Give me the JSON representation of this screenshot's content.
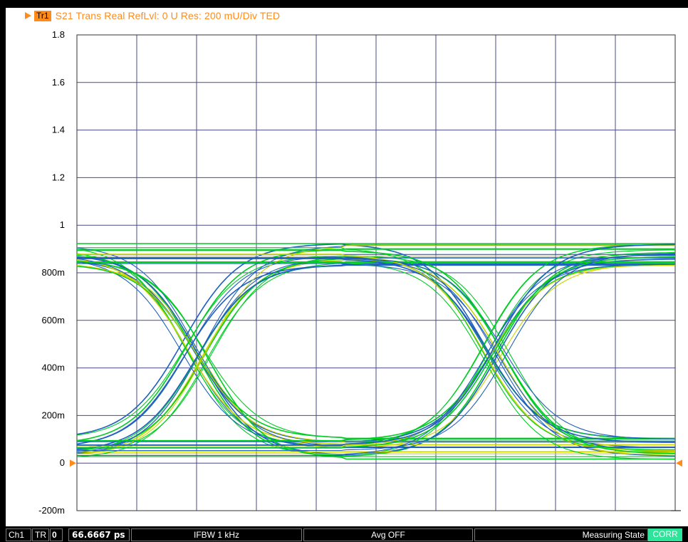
{
  "header": {
    "trace_label": "Tr1",
    "trace_info": "S21 Trans Real RefLvl: 0  U Res: 200 mU/Div  TED"
  },
  "y_axis": {
    "tick_labels": [
      "1.8",
      "1.6",
      "1.4",
      "1.2",
      "1",
      "800m",
      "600m",
      "400m",
      "200m",
      "0",
      "-200m"
    ],
    "range": [
      -0.2,
      1.8
    ]
  },
  "x_axis": {
    "divisions": 10,
    "time_per_div": "66.6667 ps"
  },
  "chart_data": {
    "type": "line",
    "title": "S21 Trans Real RefLvl: 0  U Res: 200 mU/Div  TED",
    "xlabel": "",
    "ylabel": "",
    "ylim": [
      -0.2,
      1.8
    ],
    "x_divisions": 10,
    "grid": true,
    "description_levels": {
      "high": [
        0.94,
        0.91,
        0.87,
        0.84
      ],
      "low": [
        0.02,
        0.05,
        0.1,
        0.14
      ],
      "crossings": [
        {
          "x_div": 2,
          "y": 0.48
        },
        {
          "x_div": 7,
          "y": 0.48
        }
      ]
    },
    "colors": {
      "trace_a": "#00cc22",
      "trace_b": "#1f5fbf",
      "trace_c": "#c8d400",
      "accent": "#ff8c1a"
    }
  },
  "statusbar": {
    "channel": "Ch1",
    "trace": "TR",
    "trace_num": "0",
    "stimulus": "66.6667 ps",
    "ifbw": "IFBW 1 kHz",
    "avg": "Avg OFF",
    "state": "Measuring State",
    "corr": "CORR"
  }
}
